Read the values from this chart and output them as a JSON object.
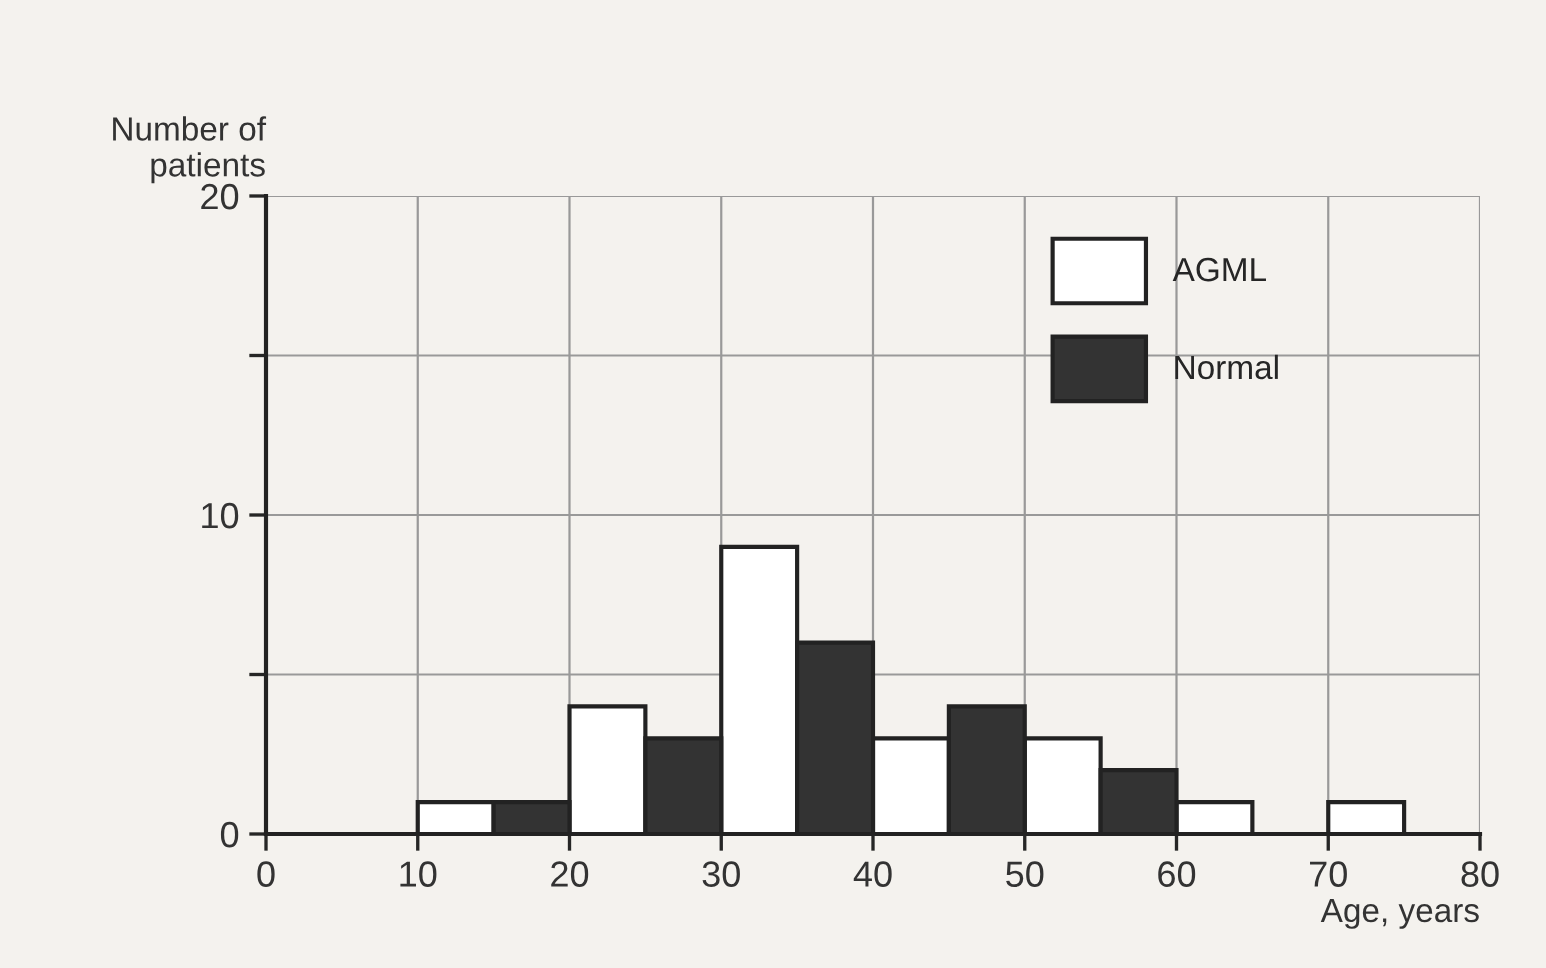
{
  "chart_data": {
    "type": "histogram",
    "xlabel": "Age, years",
    "ylabel": "Number of\npatients",
    "bins": [
      10,
      15,
      20,
      25,
      30,
      35,
      40,
      45,
      50,
      55,
      60,
      65,
      70,
      75,
      80
    ],
    "series": [
      {
        "name": "AGML",
        "color": "#ffffff",
        "values": [
          1,
          null,
          4,
          null,
          9,
          null,
          3,
          null,
          3,
          null,
          1,
          null,
          1,
          null
        ]
      },
      {
        "name": "Normal",
        "color": "#333333",
        "values": [
          null,
          1,
          null,
          3,
          null,
          6,
          null,
          4,
          null,
          2,
          null,
          null,
          null,
          null
        ]
      }
    ],
    "xlim": [
      0,
      80
    ],
    "xticks": [
      0,
      10,
      20,
      30,
      40,
      50,
      60,
      70,
      80
    ],
    "ylim": [
      0,
      20
    ],
    "yticks": [
      0,
      {
        "value": 5,
        "label": null
      },
      10,
      {
        "value": 15,
        "label": null
      },
      20
    ],
    "grid": true,
    "legend": "top right"
  }
}
